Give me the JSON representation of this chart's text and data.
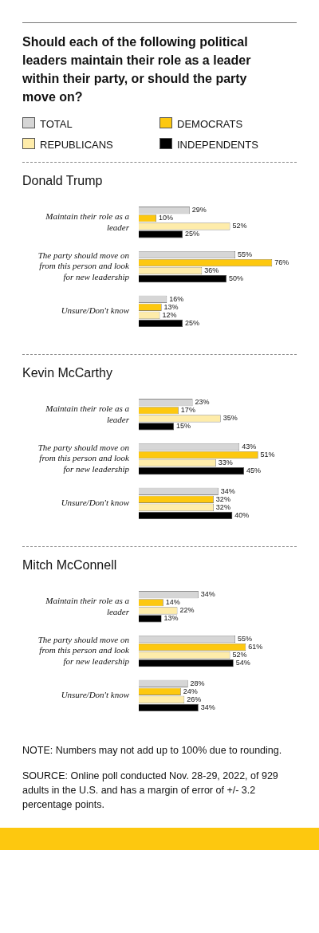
{
  "chart_data": [
    {
      "type": "bar",
      "orientation": "horizontal",
      "title": "Should each of the following political leaders maintain their role as a leader within their party, or should the party move on?",
      "subtitle": "Donald Trump",
      "legend": "top",
      "tick_labels": "y",
      "categories": [
        "Maintain their role as a leader",
        "The party should move on from this person and look for new leadership",
        "Unsure/Don't know"
      ],
      "series": [
        {
          "name": "TOTAL",
          "color": "#d6d6d6",
          "values": [
            29,
            55,
            16
          ],
          "value_labels": [
            "29%",
            "55%",
            "16%"
          ]
        },
        {
          "name": "DEMOCRATS",
          "color": "#fdc80f",
          "values": [
            10,
            76,
            13
          ],
          "value_labels": [
            "10%",
            "76%",
            "13%"
          ]
        },
        {
          "name": "REPUBLICANS",
          "color": "#feecaa",
          "values": [
            52,
            36,
            12
          ],
          "value_labels": [
            "52%",
            "36%",
            "12%"
          ]
        },
        {
          "name": "INDEPENDENTS",
          "color": "#000000",
          "values": [
            25,
            50,
            25
          ],
          "value_labels": [
            "25%",
            "50%",
            "25%"
          ]
        }
      ]
    },
    {
      "type": "bar",
      "orientation": "horizontal",
      "title": "Kevin McCarthy",
      "tick_labels": "y",
      "categories": [
        "Maintain their role as a leader",
        "The party should move on from this person and look for new leadership",
        "Unsure/Don't know"
      ],
      "series": [
        {
          "color": "#d6d6d6",
          "values": [
            23,
            43,
            34
          ],
          "value_labels": [
            "23%",
            "43%",
            "34%"
          ]
        },
        {
          "color": "#fdc80f",
          "values": [
            17,
            51,
            32
          ],
          "value_labels": [
            "17%",
            "51%",
            "32%"
          ]
        },
        {
          "color": "#feecaa",
          "values": [
            35,
            33,
            32
          ],
          "value_labels": [
            "35%",
            "33%",
            "32%"
          ]
        },
        {
          "color": "#000000",
          "values": [
            15,
            45,
            40
          ],
          "value_labels": [
            "15%",
            "45%",
            "40%"
          ]
        }
      ]
    },
    {
      "type": "bar",
      "orientation": "horizontal",
      "title": "Mitch McConnell",
      "tick_labels": "y",
      "categories": [
        "Maintain their role as a leader",
        "The party should move on from this person and look for new leadership",
        "Unsure/Don't know"
      ],
      "series": [
        {
          "color": "#d6d6d6",
          "values": [
            34,
            55,
            28
          ],
          "value_labels": [
            "34%",
            "55%",
            "28%"
          ]
        },
        {
          "color": "#fdc80f",
          "values": [
            14,
            61,
            24
          ],
          "value_labels": [
            "14%",
            "61%",
            "24%"
          ]
        },
        {
          "color": "#feecaa",
          "values": [
            22,
            52,
            26
          ],
          "value_labels": [
            "22%",
            "52%",
            "26%"
          ]
        },
        {
          "color": "#000000",
          "values": [
            13,
            54,
            34
          ],
          "value_labels": [
            "13%",
            "54%",
            "34%"
          ]
        }
      ],
      "annotations": [
        "NOTE: Numbers may not add up to 100% due to rounding.",
        "SOURCE: Online poll conducted Nov. 28-29, 2022, of 929 adults in the U.S. and has a margin of error of +/- 3.2 percentage points."
      ]
    }
  ]
}
